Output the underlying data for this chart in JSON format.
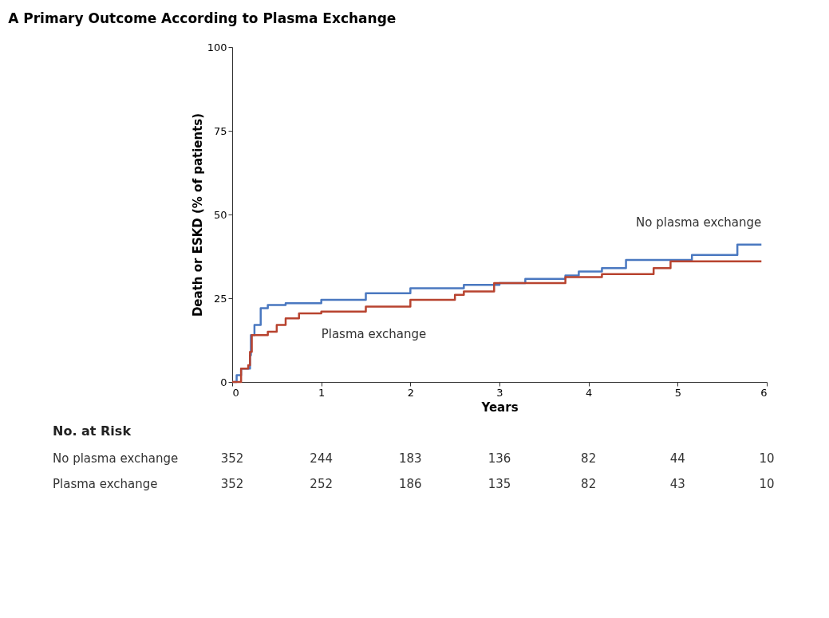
{
  "chart_data": {
    "type": "step",
    "title": "A  Primary Outcome According to Plasma Exchange",
    "xlabel": "Years",
    "ylabel": "Death or ESKD (% of patients)",
    "xlim": [
      0,
      6
    ],
    "xticks": [
      0,
      1,
      2,
      3,
      4,
      5,
      6
    ],
    "ylim": [
      0,
      100
    ],
    "yticks": [
      0,
      25,
      50,
      75,
      100
    ],
    "grid": false,
    "marker": "none",
    "line_style": "solid",
    "series": [
      {
        "name": "No plasma exchange",
        "color": "#4a78c0",
        "x": [
          0,
          0.05,
          0.1,
          0.2,
          0.21,
          0.25,
          0.32,
          0.4,
          0.6,
          1,
          1.5,
          2,
          2.6,
          3.0,
          3.29,
          3.74,
          3.89,
          4.15,
          4.42,
          5.16,
          5.67,
          5.94
        ],
        "values": [
          0,
          2,
          4,
          8,
          14,
          17,
          22,
          23,
          23.5,
          24.5,
          26.5,
          28,
          29,
          29.5,
          30.8,
          31.8,
          33,
          34,
          36.4,
          37.9,
          41,
          41
        ]
      },
      {
        "name": "Plasma exchange",
        "color": "#b8432f",
        "x": [
          0,
          0.1,
          0.18,
          0.2,
          0.22,
          0.4,
          0.5,
          0.6,
          0.75,
          1,
          1.5,
          2,
          2.5,
          2.6,
          2.94,
          3.32,
          3.74,
          4.15,
          4.73,
          4.92,
          5.94
        ],
        "values": [
          0,
          4,
          5,
          9,
          14,
          15,
          17,
          19,
          20.5,
          21,
          22.5,
          24.5,
          26,
          27,
          29.5,
          29.5,
          31.3,
          32.2,
          34,
          36,
          36
        ]
      }
    ],
    "annotations": [
      "No. at Risk",
      "No plasma exchange",
      "352",
      "244",
      "183",
      "136",
      "82",
      "44",
      "10",
      "Plasma exchange",
      "352",
      "252",
      "186",
      "135",
      "82",
      "43",
      "10"
    ]
  }
}
